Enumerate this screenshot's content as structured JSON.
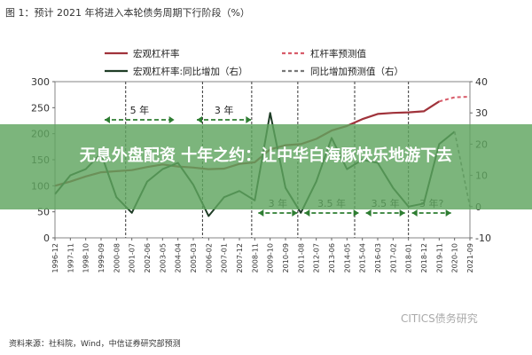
{
  "figure": {
    "title": "图 1：预计 2021 年将进入本轮债务周期下行阶段（%）",
    "source": "资料来源：社科院，Wind，中信证券研究部预测",
    "watermark": "CITICS债务研究"
  },
  "overlay": {
    "headline": "无息外盘配资 十年之约：让中华白海豚快乐地游下去"
  },
  "chart_data": {
    "type": "line",
    "x_tick_labels": [
      "1996-12",
      "1997-11",
      "1998-10",
      "1999-09",
      "2000-08",
      "2001-07",
      "2002-06",
      "2003-05",
      "2004-04",
      "2005-03",
      "2006-02",
      "2007-01",
      "2007-12",
      "2008-11",
      "2009-10",
      "2010-09",
      "2011-08",
      "2012-07",
      "2013-06",
      "2014-05",
      "2015-04",
      "2016-03",
      "2017-02",
      "2018-01",
      "2018-12",
      "2019-11",
      "2020-10",
      "2021-09"
    ],
    "y_left": {
      "min": 0,
      "max": 300,
      "ticks": [
        0,
        50,
        100,
        150,
        200,
        250,
        300
      ]
    },
    "y_right": {
      "min": -10,
      "max": 40,
      "ticks": [
        -10,
        0,
        10,
        20,
        30,
        40
      ]
    },
    "legend": [
      {
        "label": "宏观杠杆率",
        "color": "#a0333b",
        "style": "solid"
      },
      {
        "label": "杠杆率预测值",
        "color": "#d85c6a",
        "style": "dashed"
      },
      {
        "label": "宏观杠杆率:同比增加（右）",
        "color": "#1f3d26",
        "style": "solid"
      },
      {
        "label": "同比增加预测值（右）",
        "color": "#777777",
        "style": "dashed"
      }
    ],
    "series": [
      {
        "name": "宏观杠杆率",
        "axis": "left",
        "x": [
          0,
          1,
          2,
          3,
          4,
          5,
          6,
          7,
          8,
          9,
          10,
          11,
          12,
          13,
          14,
          15,
          16,
          17,
          18,
          19,
          20,
          21,
          22,
          23,
          24,
          25
        ],
        "values": [
          100,
          108,
          118,
          126,
          128,
          130,
          136,
          141,
          137,
          135,
          132,
          133,
          142,
          145,
          170,
          178,
          180,
          190,
          206,
          215,
          228,
          238,
          240,
          241,
          243,
          262
        ]
      },
      {
        "name": "杠杆率预测值",
        "axis": "left",
        "x": [
          25,
          26,
          27
        ],
        "values": [
          262,
          270,
          271
        ]
      },
      {
        "name": "宏观杠杆率:同比增加（右）",
        "axis": "right",
        "x": [
          0,
          1,
          2,
          3,
          4,
          5,
          6,
          7,
          8,
          9,
          10,
          11,
          12,
          13,
          14,
          15,
          16,
          17,
          18,
          19,
          20,
          21,
          22,
          23,
          24,
          25,
          26
        ],
        "values": [
          4,
          10,
          12,
          17,
          3,
          -2,
          8,
          12,
          14,
          7,
          -3,
          3,
          5,
          2,
          30,
          6,
          -2,
          8,
          22,
          12,
          15,
          14,
          6,
          0,
          1,
          20,
          24
        ]
      },
      {
        "name": "同比增加预测值（右）",
        "axis": "right",
        "x": [
          26,
          27
        ],
        "values": [
          24,
          0
        ]
      }
    ],
    "cycle_annotations": [
      {
        "label": "5 年",
        "from": 3,
        "to": 8
      },
      {
        "label": "3 年",
        "from": 9,
        "to": 13
      },
      {
        "label": "3 年",
        "from": 13,
        "to": 16
      },
      {
        "label": "3.5 年",
        "from": 16,
        "to": 20
      },
      {
        "label": "3.5 年",
        "from": 20,
        "to": 23
      },
      {
        "label": "3 年?",
        "from": 23,
        "to": 26
      }
    ],
    "cycle_dividers": [
      4.6,
      9.6,
      12.8,
      15.8,
      19.5,
      23
    ]
  }
}
